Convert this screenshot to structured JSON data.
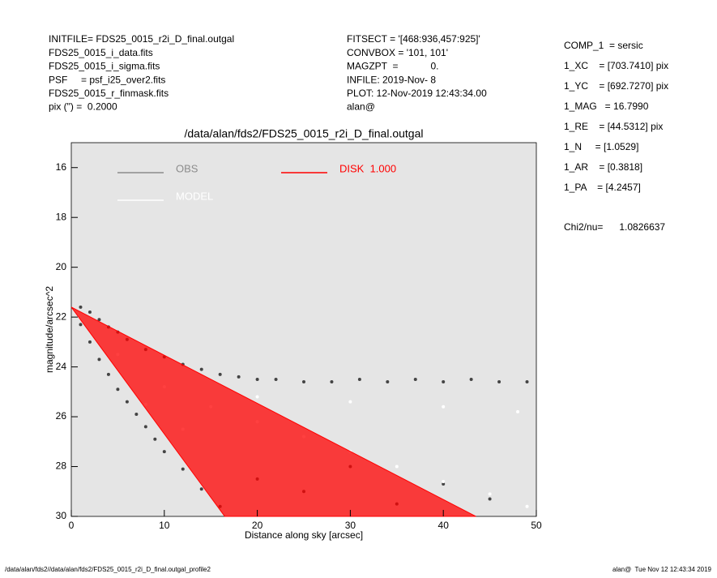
{
  "info_left": [
    "INITFILE= FDS25_0015_r2i_D_final.outgal",
    "FDS25_0015_i_data.fits",
    "FDS25_0015_i_sigma.fits",
    "PSF     = psf_i25_over2.fits",
    "FDS25_0015_r_finmask.fits",
    "pix (\") =  0.2000"
  ],
  "info_center": [
    "FITSECT = '[468:936,457:925]'",
    "CONVBOX = '101, 101'",
    "MAGZPT  =            0.",
    "INFILE: 2019-Nov- 8",
    "PLOT: 12-Nov-2019 12:43:34.00",
    "alan@"
  ],
  "info_right": [
    "COMP_1  = sersic",
    "1_XC    = [703.7410] pix",
    "1_YC    = [692.7270] pix",
    "1_MAG   = 16.7990",
    "1_RE    = [44.5312] pix",
    "1_N     = [1.0529]",
    "1_AR    = [0.3818]",
    "1_PA    = [4.2457]"
  ],
  "chi2": "Chi2/nu=      1.0826637",
  "footer_left": "/data/alan/fds2//data/alan/fds2/FDS25_0015_r2i_D_final.outgal_profile2",
  "footer_right": "alan@  Tue Nov 12 12:43:34 2019",
  "chart_data": {
    "type": "scatter",
    "title": "/data/alan/fds2/FDS25_0015_r2i_D_final.outgal",
    "xlabel": "Distance along sky [arcsec]",
    "ylabel": "magnitude/arcsec^2",
    "xlim": [
      0,
      50
    ],
    "xticks": [
      0,
      10,
      20,
      30,
      40,
      50
    ],
    "ylim": [
      30,
      15
    ],
    "yticks": [
      16,
      18,
      20,
      22,
      24,
      26,
      28,
      30
    ],
    "y_inverted": true,
    "background": "#e5e5e5",
    "series": [
      {
        "name": "OBS",
        "color": "#444444",
        "legend_color": "#8c8c8c",
        "x": [
          1,
          2,
          3,
          4,
          5,
          6,
          8,
          10,
          12,
          14,
          16,
          18,
          20,
          22,
          25,
          28,
          31,
          34,
          37,
          40,
          43,
          46,
          49,
          1,
          2,
          3,
          4,
          5,
          6,
          7,
          8,
          9,
          10,
          12,
          14,
          16,
          20,
          25,
          30,
          35,
          40,
          45
        ],
        "y": [
          21.6,
          21.8,
          22.1,
          22.4,
          22.6,
          22.9,
          23.3,
          23.6,
          23.9,
          24.1,
          24.3,
          24.4,
          24.5,
          24.5,
          24.6,
          24.6,
          24.5,
          24.6,
          24.5,
          24.6,
          24.5,
          24.6,
          24.6,
          22.3,
          23,
          23.7,
          24.3,
          24.9,
          25.4,
          25.9,
          26.4,
          26.9,
          27.4,
          28.1,
          28.9,
          29.6,
          28.5,
          29,
          28,
          29.5,
          28.7,
          29.3
        ]
      },
      {
        "name": "MODEL",
        "color": "#ffffff",
        "legend_color": "#ffffff",
        "x": [
          5,
          10,
          15,
          20,
          25,
          30,
          35,
          40,
          45,
          49,
          8,
          12,
          20,
          30,
          40,
          48
        ],
        "y": [
          23.5,
          24.8,
          25.6,
          26.2,
          26.8,
          27.4,
          28.0,
          28.6,
          29.1,
          29.6,
          25.5,
          26.5,
          25.2,
          25.4,
          25.6,
          25.8
        ]
      },
      {
        "name": "DISK  1.000",
        "color": "#ff0000",
        "legend_color": "#ff0000",
        "wedge": true,
        "x": [
          0,
          43.5,
          16.5
        ],
        "y": [
          21.6,
          30,
          30
        ]
      }
    ]
  }
}
